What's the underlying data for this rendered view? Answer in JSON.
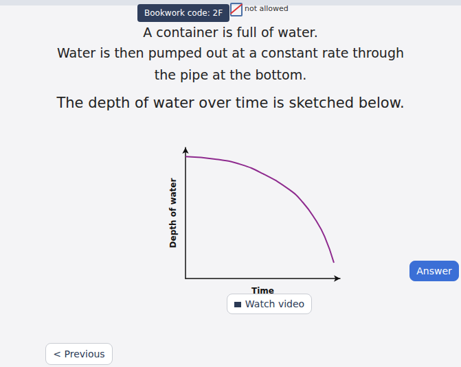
{
  "header": {
    "bookwork_code": "Bookwork code: 2F",
    "calculator": "not allowed"
  },
  "question": {
    "lines": [
      "A container is full of water.",
      "Water is then pumped out at a constant rate through",
      "the pipe at the bottom.",
      "The depth of water over time is sketched below."
    ]
  },
  "chart_data": {
    "type": "line",
    "x_label": "Time",
    "y_label": "Depth of water",
    "x": [
      0,
      2,
      3.6,
      5,
      6.7,
      7.6,
      8.4,
      9,
      9.6
    ],
    "values": [
      9.3,
      9.1,
      8.7,
      8.0,
      6.8,
      5.8,
      4.5,
      3.2,
      1.2
    ],
    "color": "#8e2a8e",
    "xlim": [
      0,
      10
    ],
    "ylim": [
      0,
      10
    ],
    "grid": false,
    "tick_labels": false
  },
  "buttons": {
    "watch_video": "Watch video",
    "previous": "< Previous",
    "answer": "Answer"
  }
}
